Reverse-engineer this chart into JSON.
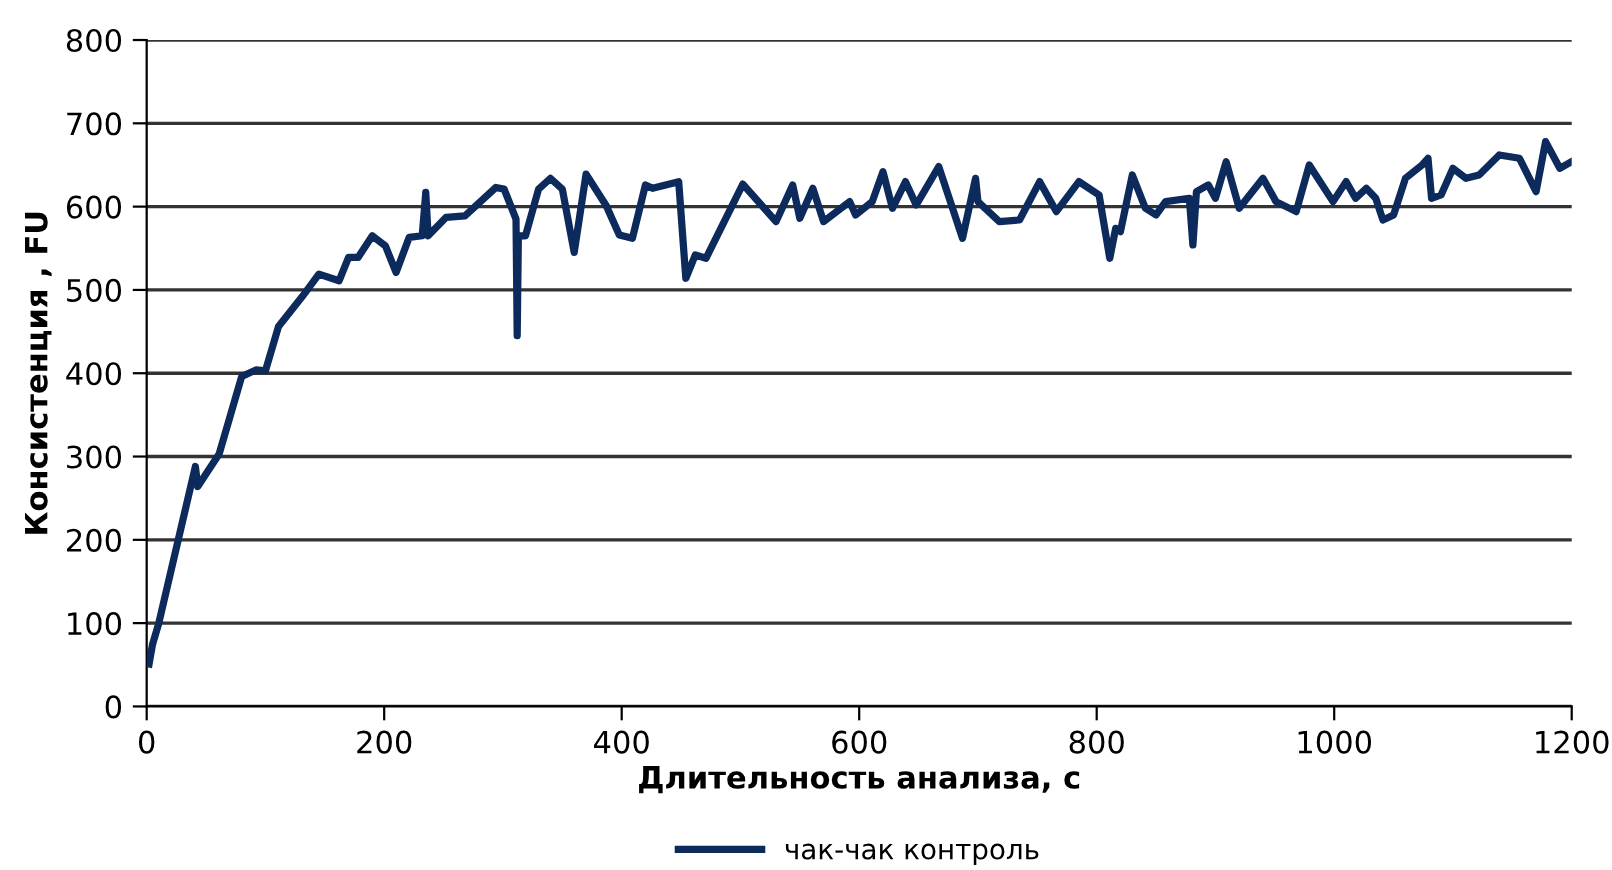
{
  "chart_data": {
    "type": "line",
    "xlabel": "Длительность анализа, с",
    "ylabel": "Консистенция , FU",
    "xlim": [
      0,
      1200
    ],
    "xticks": [
      0,
      200,
      400,
      600,
      800,
      1000,
      1200
    ],
    "ylim": [
      0,
      800
    ],
    "yticks": [
      0,
      100,
      200,
      300,
      400,
      500,
      600,
      700,
      800
    ],
    "grid": "y",
    "legend": "bottom",
    "marker": "none",
    "line_style": "solid",
    "series": [
      {
        "name": "чак-чак контроль",
        "color": "#0d2a5c",
        "x": [
          2,
          5,
          10,
          41,
          43,
          61,
          80,
          92,
          100,
          111,
          131,
          145,
          162,
          170,
          178,
          190,
          201,
          210,
          221,
          232,
          235,
          237,
          252,
          268,
          294,
          301,
          311,
          312,
          313,
          319,
          330,
          340,
          350,
          360,
          370,
          387,
          398,
          409,
          420,
          426,
          448,
          454,
          462,
          471,
          502,
          530,
          544,
          550,
          561,
          570,
          592,
          597,
          611,
          620,
          628,
          639,
          648,
          667,
          687,
          698,
          700,
          718,
          735,
          752,
          766,
          785,
          802,
          811,
          816,
          820,
          830,
          841,
          850,
          858,
          878,
          881,
          884,
          894,
          900,
          909,
          920,
          940,
          951,
          968,
          979,
          999,
          1010,
          1018,
          1027,
          1035,
          1041,
          1050,
          1060,
          1074,
          1079,
          1082,
          1090,
          1100,
          1111,
          1122,
          1139,
          1156,
          1170,
          1178,
          1190,
          1200
        ],
        "values": [
          51,
          75,
          99,
          288,
          264,
          303,
          396,
          404,
          403,
          456,
          492,
          519,
          511,
          539,
          539,
          565,
          553,
          521,
          563,
          565,
          617,
          565,
          587,
          589,
          623,
          621,
          585,
          445,
          565,
          565,
          621,
          634,
          621,
          545,
          639,
          601,
          566,
          562,
          626,
          622,
          630,
          514,
          542,
          538,
          627,
          582,
          626,
          586,
          622,
          582,
          606,
          590,
          606,
          642,
          598,
          630,
          602,
          648,
          562,
          634,
          606,
          582,
          584,
          630,
          594,
          630,
          614,
          538,
          574,
          570,
          638,
          598,
          590,
          606,
          610,
          554,
          618,
          626,
          610,
          654,
          598,
          634,
          606,
          594,
          650,
          606,
          630,
          610,
          622,
          610,
          584,
          590,
          634,
          650,
          658,
          610,
          614,
          646,
          634,
          638,
          662,
          658,
          618,
          678,
          646,
          654
        ]
      }
    ]
  }
}
